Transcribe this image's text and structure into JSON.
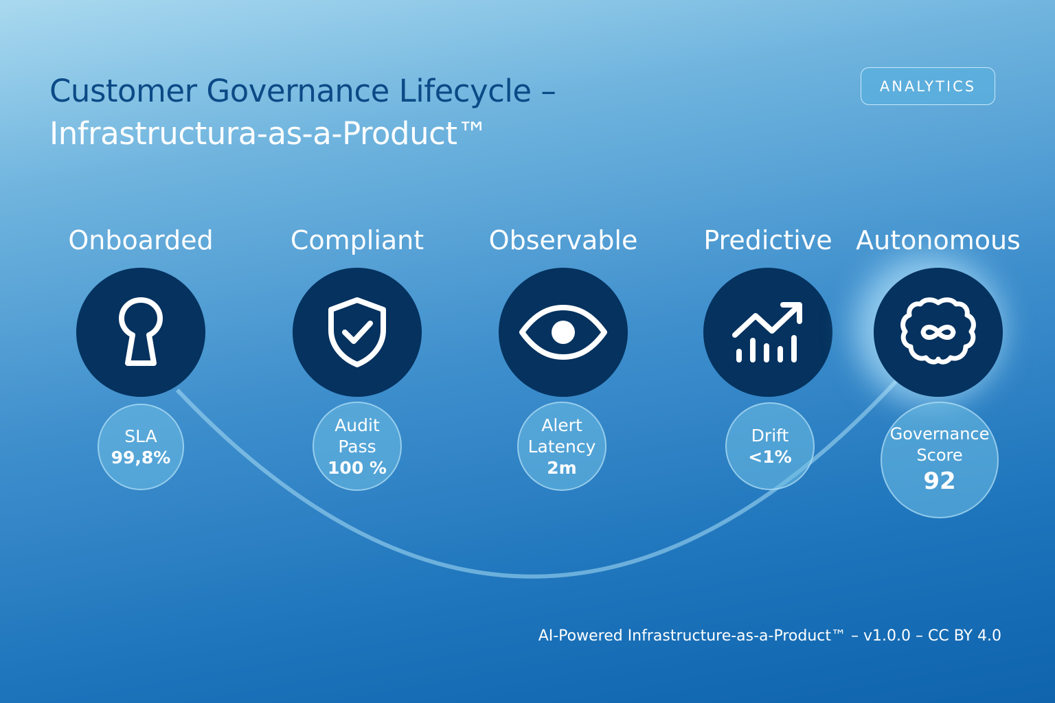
{
  "header": {
    "title_line1": "Customer Governance Lifecycle –",
    "title_line2": "Infrastructura-as-a-Product™",
    "badge": "ANALYTICS"
  },
  "stages": [
    {
      "label": "Onboarded",
      "icon": "keyhole-icon",
      "metric_lines": [
        "SLA",
        "99,8%"
      ]
    },
    {
      "label": "Compliant",
      "icon": "shield-check-icon",
      "metric_lines": [
        "Audit",
        "Pass",
        "100 %"
      ]
    },
    {
      "label": "Observable",
      "icon": "eye-icon",
      "metric_lines": [
        "Alert",
        "Latency",
        "2m"
      ]
    },
    {
      "label": "Predictive",
      "icon": "trend-chart-icon",
      "metric_lines": [
        "Drift",
        "<1%"
      ]
    },
    {
      "label": "Autonomous",
      "icon": "brain-infinity-icon",
      "metric_lines": [
        "Governance",
        "Score",
        "92"
      ]
    }
  ],
  "footer": "AI-Powered Infrastructure-as-a-Product™ – v1.0.0 – CC BY 4.0",
  "colors": {
    "node_fill": "#05325f",
    "title_dark": "#0b4a86",
    "text_light": "#ffffff"
  }
}
